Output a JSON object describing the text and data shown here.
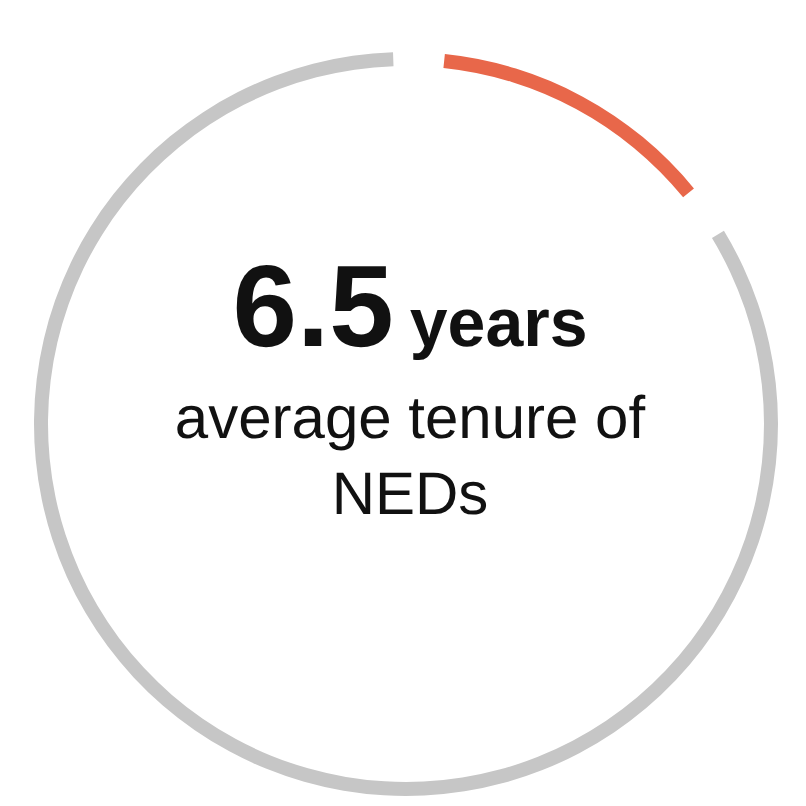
{
  "chart_data": {
    "type": "donut",
    "categories": [
      null,
      null
    ],
    "values": [
      13,
      87
    ],
    "colors": [
      "#e8674a",
      "#c6c6c6"
    ],
    "annotations": [
      "6.5",
      "years",
      "average tenure of NEDs"
    ]
  }
}
